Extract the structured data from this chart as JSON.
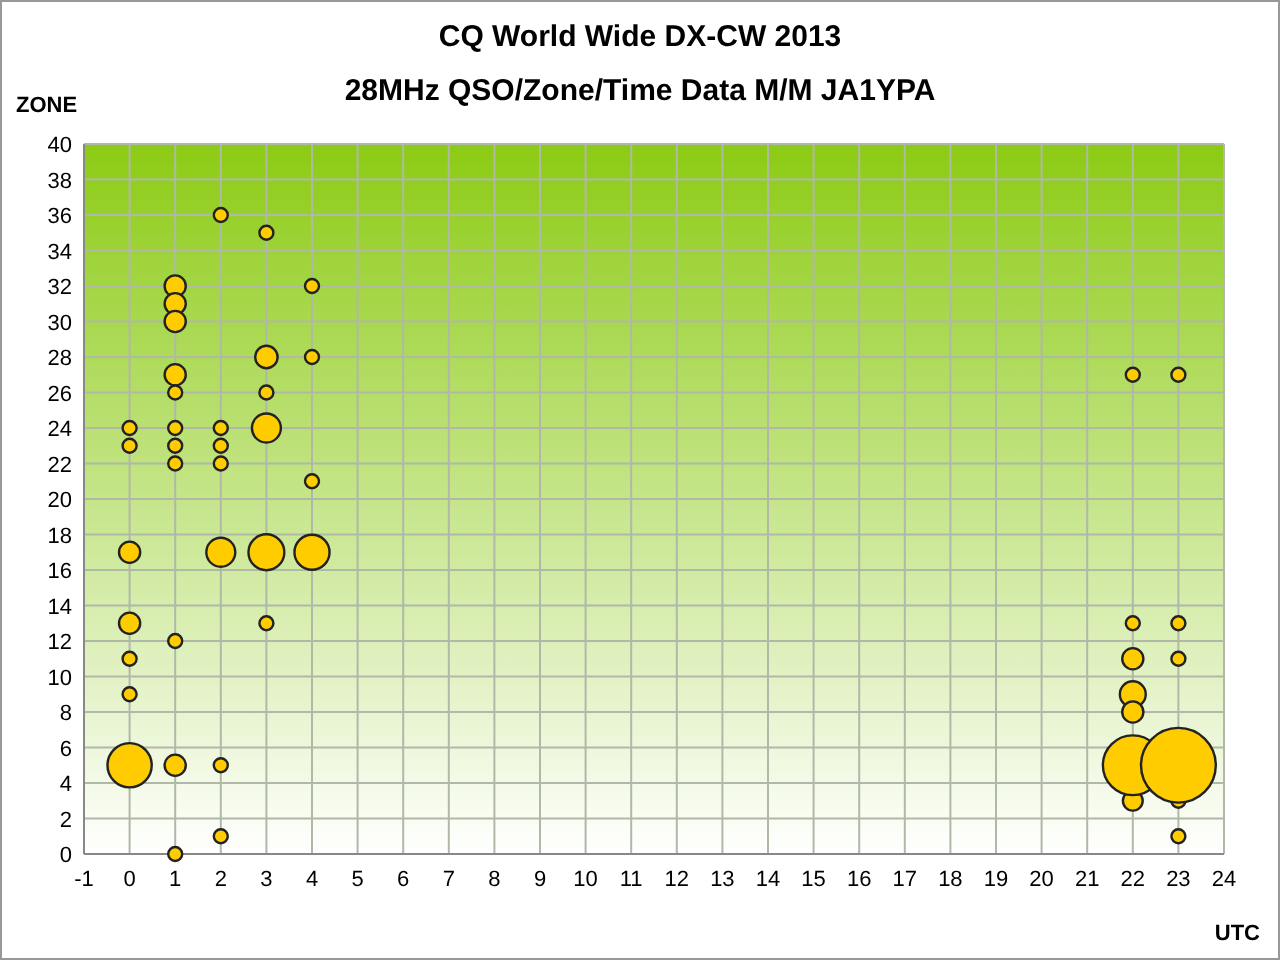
{
  "chart_data": {
    "type": "bubble",
    "title": "CQ World Wide DX-CW 2013",
    "subtitle": "28MHz QSO/Zone/Time Data M/M JA1YPA",
    "xlabel": "UTC",
    "ylabel": "ZONE",
    "xlim": [
      -1,
      24
    ],
    "xticks": [
      -1,
      0,
      1,
      2,
      3,
      4,
      5,
      6,
      7,
      8,
      9,
      10,
      11,
      12,
      13,
      14,
      15,
      16,
      17,
      18,
      19,
      20,
      21,
      22,
      23,
      24
    ],
    "ylim": [
      0,
      40
    ],
    "yticks": [
      0,
      2,
      4,
      6,
      8,
      10,
      12,
      14,
      16,
      18,
      20,
      22,
      24,
      26,
      28,
      30,
      32,
      34,
      36,
      38,
      40
    ],
    "grid": true,
    "series": [
      {
        "color": "#ffcc00",
        "x": [
          0,
          0,
          0,
          0,
          0,
          0,
          0,
          1,
          1,
          1,
          1,
          1,
          1,
          1,
          1,
          1,
          1,
          1,
          2,
          2,
          2,
          2,
          2,
          2,
          2,
          3,
          3,
          3,
          3,
          3,
          3,
          4,
          4,
          4,
          4,
          22,
          22,
          22,
          22,
          22,
          22,
          22,
          23,
          23,
          23,
          23,
          23,
          23
        ],
        "values": [
          24,
          23,
          17,
          13,
          11,
          9,
          5,
          32,
          31,
          30,
          27,
          26,
          24,
          23,
          22,
          12,
          5,
          0,
          36,
          24,
          23,
          22,
          17,
          5,
          1,
          35,
          28,
          26,
          24,
          17,
          13,
          32,
          28,
          21,
          17,
          27,
          13,
          11,
          9,
          8,
          3,
          5,
          27,
          13,
          11,
          3,
          1,
          5
        ],
        "sizes": [
          0.035,
          0.035,
          0.08,
          0.08,
          0.035,
          0.035,
          0.35,
          0.08,
          0.08,
          0.08,
          0.08,
          0.035,
          0.035,
          0.035,
          0.035,
          0.035,
          0.08,
          0.035,
          0.035,
          0.035,
          0.035,
          0.035,
          0.15,
          0.035,
          0.035,
          0.035,
          0.09,
          0.035,
          0.15,
          0.23,
          0.035,
          0.035,
          0.035,
          0.035,
          0.22,
          0.035,
          0.035,
          0.08,
          0.12,
          0.08,
          0.07,
          0.64,
          0.035,
          0.035,
          0.035,
          0.035,
          0.035,
          1
        ]
      }
    ]
  }
}
